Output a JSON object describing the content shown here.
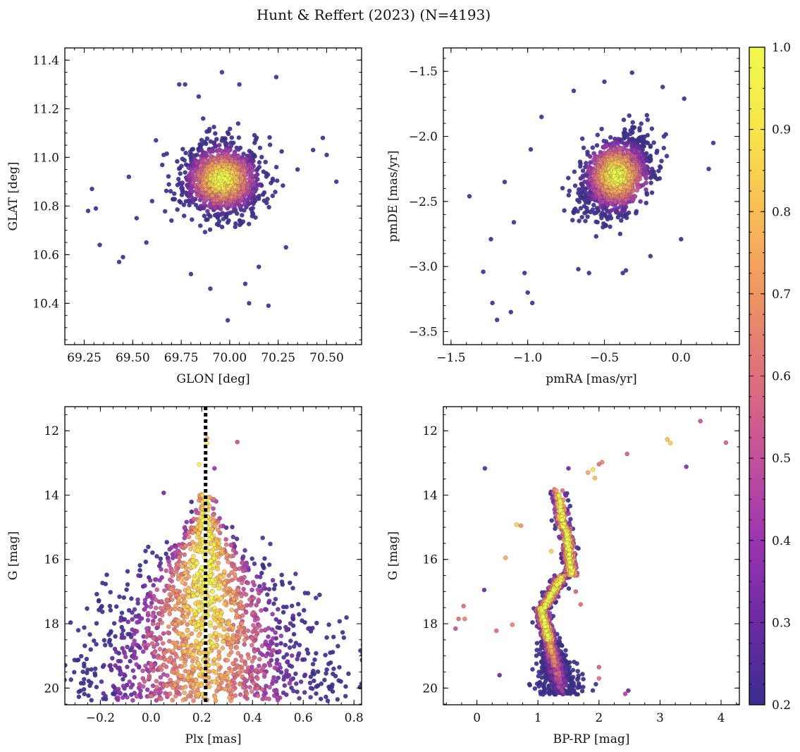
{
  "figure": {
    "title": "Hunt & Reffert (2023) (N=4193)"
  },
  "colorbar": {
    "label": "",
    "range": [
      0.2,
      1.0
    ],
    "ticks": [
      0.2,
      0.3,
      0.4,
      0.5,
      0.6,
      0.7,
      0.8,
      0.9,
      1.0
    ],
    "tick_labels": [
      "0.2",
      "0.3",
      "0.4",
      "0.5",
      "0.6",
      "0.7",
      "0.8",
      "0.9",
      "1.0"
    ],
    "colormap": "plasma",
    "colormap_stops": [
      "#3b2e8f",
      "#6a2ba1",
      "#9b35b0",
      "#c2519a",
      "#dd707c",
      "#ee9563",
      "#f8bd55",
      "#f7e64b",
      "#f0f94e"
    ]
  },
  "chart_data": [
    {
      "type": "scatter",
      "panel": "top-left",
      "title": "",
      "xlabel": "GLON [deg]",
      "ylabel": "GLAT [deg]",
      "xlim": [
        69.15,
        70.68
      ],
      "ylim": [
        10.23,
        11.45
      ],
      "xticks": [
        69.25,
        69.5,
        69.75,
        70.0,
        70.25,
        70.5
      ],
      "xtick_labels": [
        "69.25",
        "69.50",
        "69.75",
        "70.00",
        "70.25",
        "70.50"
      ],
      "yticks": [
        10.4,
        10.6,
        10.8,
        11.0,
        11.2,
        11.4
      ],
      "ytick_labels": [
        "10.4",
        "10.6",
        "10.8",
        "11.0",
        "11.2",
        "11.4"
      ],
      "xminor": 0.05,
      "yminor": 0.05,
      "cluster_center": [
        69.96,
        10.91
      ],
      "cluster_spread": [
        0.18,
        0.13
      ],
      "points": [
        [
          69.27,
          10.78,
          0.22
        ],
        [
          69.29,
          10.87,
          0.22
        ],
        [
          69.31,
          10.79,
          0.22
        ],
        [
          69.33,
          10.64,
          0.22
        ],
        [
          69.43,
          10.57,
          0.22
        ],
        [
          69.45,
          10.59,
          0.22
        ],
        [
          69.48,
          10.92,
          0.22
        ],
        [
          69.52,
          10.75,
          0.22
        ],
        [
          69.57,
          10.65,
          0.22
        ],
        [
          69.6,
          10.82,
          0.22
        ],
        [
          69.62,
          11.07,
          0.22
        ],
        [
          69.66,
          11.01,
          0.22
        ],
        [
          69.7,
          10.74,
          0.22
        ],
        [
          69.74,
          11.3,
          0.22
        ],
        [
          69.77,
          11.3,
          0.22
        ],
        [
          69.84,
          11.25,
          0.22
        ],
        [
          69.96,
          11.35,
          0.22
        ],
        [
          70.05,
          11.3,
          0.22
        ],
        [
          70.08,
          10.48,
          0.22
        ],
        [
          70.1,
          10.4,
          0.22
        ],
        [
          70.2,
          10.39,
          0.22
        ],
        [
          70.24,
          11.33,
          0.22
        ],
        [
          70.29,
          10.63,
          0.22
        ],
        [
          70.35,
          10.95,
          0.22
        ],
        [
          70.43,
          11.03,
          0.22
        ],
        [
          70.48,
          11.08,
          0.22
        ],
        [
          70.5,
          11.01,
          0.22
        ],
        [
          70.55,
          10.9,
          0.22
        ],
        [
          69.99,
          10.33,
          0.22
        ],
        [
          69.8,
          10.52,
          0.22
        ],
        [
          69.9,
          10.46,
          0.22
        ],
        [
          70.15,
          10.55,
          0.22
        ]
      ]
    },
    {
      "type": "scatter",
      "panel": "top-right",
      "title": "",
      "xlabel": "pmRA [mas/yr]",
      "ylabel": "pmDE [mas/yr]",
      "xlim": [
        -1.55,
        0.38
      ],
      "ylim": [
        -3.6,
        -1.32
      ],
      "xticks": [
        -1.5,
        -1.0,
        -0.5,
        0.0
      ],
      "xtick_labels": [
        "−1.5",
        "−1.0",
        "−0.5",
        "0.0"
      ],
      "yticks": [
        -3.5,
        -3.0,
        -2.5,
        -2.0,
        -1.5
      ],
      "ytick_labels": [
        "−3.5",
        "−3.0",
        "−2.5",
        "−2.0",
        "−1.5"
      ],
      "xminor": 0.1,
      "yminor": 0.1,
      "cluster_center": [
        -0.42,
        -2.3
      ],
      "cluster_spread": [
        0.2,
        0.26
      ],
      "points": [
        [
          -1.38,
          -2.46,
          0.22
        ],
        [
          -1.29,
          -3.04,
          0.22
        ],
        [
          -1.24,
          -2.79,
          0.22
        ],
        [
          -1.23,
          -3.28,
          0.22
        ],
        [
          -1.2,
          -3.41,
          0.22
        ],
        [
          -1.15,
          -2.35,
          0.22
        ],
        [
          -1.11,
          -3.35,
          0.22
        ],
        [
          -1.09,
          -2.66,
          0.22
        ],
        [
          -1.02,
          -3.05,
          0.22
        ],
        [
          -1.0,
          -3.2,
          0.22
        ],
        [
          -0.97,
          -3.28,
          0.22
        ],
        [
          -0.98,
          -2.1,
          0.22
        ],
        [
          -0.91,
          -1.85,
          0.22
        ],
        [
          -0.7,
          -1.65,
          0.22
        ],
        [
          -0.5,
          -1.58,
          0.22
        ],
        [
          -0.32,
          -1.51,
          0.22
        ],
        [
          -0.12,
          -1.62,
          0.22
        ],
        [
          0.02,
          -1.71,
          0.22
        ],
        [
          0.21,
          -2.05,
          0.22
        ],
        [
          0.18,
          -2.25,
          0.22
        ],
        [
          0.0,
          -2.79,
          0.22
        ],
        [
          -0.2,
          -2.92,
          0.22
        ],
        [
          -0.38,
          -3.05,
          0.22
        ],
        [
          -0.6,
          -3.05,
          0.22
        ],
        [
          -0.67,
          -3.02,
          0.22
        ],
        [
          -0.36,
          -3.03,
          0.22
        ]
      ]
    },
    {
      "type": "scatter",
      "panel": "bottom-left",
      "title": "",
      "xlabel": "Plx [mas]",
      "ylabel": "G [mag]",
      "xlim": [
        -0.34,
        0.83
      ],
      "ylim": [
        20.52,
        11.25
      ],
      "y_inverted": true,
      "xticks": [
        -0.2,
        0.0,
        0.2,
        0.4,
        0.6,
        0.8
      ],
      "xtick_labels": [
        "−0.2",
        "0.0",
        "0.2",
        "0.4",
        "0.6",
        "0.8"
      ],
      "yticks": [
        12,
        14,
        16,
        18,
        20
      ],
      "ytick_labels": [
        "12",
        "14",
        "16",
        "18",
        "20"
      ],
      "xminor": 0.05,
      "yminor": 0.5,
      "reference_line": {
        "x": 0.215,
        "style": "dotted",
        "color": "#000000"
      },
      "points": [
        [
          0.22,
          12.23,
          0.75
        ],
        [
          0.34,
          12.35,
          0.5
        ],
        [
          0.19,
          13.05,
          0.95
        ],
        [
          0.25,
          13.17,
          0.4
        ],
        [
          0.22,
          12.38,
          0.95
        ],
        [
          0.05,
          13.93,
          0.3
        ],
        [
          0.44,
          15.33,
          0.25
        ],
        [
          0.47,
          15.52,
          0.25
        ],
        [
          0.37,
          15.72,
          0.3
        ],
        [
          0.57,
          16.45,
          0.25
        ],
        [
          0.65,
          17.2,
          0.25
        ],
        [
          0.7,
          19.25,
          0.22
        ],
        [
          0.72,
          19.4,
          0.22
        ],
        [
          -0.22,
          19.4,
          0.22
        ],
        [
          -0.25,
          19.43,
          0.22
        ],
        [
          0.0,
          20.25,
          0.6
        ],
        [
          -0.18,
          20.25,
          0.25
        ],
        [
          0.41,
          20.22,
          0.4
        ],
        [
          0.62,
          18.15,
          0.3
        ],
        [
          0.56,
          17.75,
          0.3
        ],
        [
          -0.05,
          16.5,
          0.3
        ],
        [
          0.48,
          16.65,
          0.3
        ],
        [
          -0.12,
          17.9,
          0.3
        ],
        [
          0.5,
          17.55,
          0.3
        ]
      ]
    },
    {
      "type": "scatter",
      "panel": "bottom-right",
      "title": "",
      "xlabel": "BP-RP [mag]",
      "ylabel": "G [mag]",
      "xlim": [
        -0.55,
        4.3
      ],
      "ylim": [
        20.52,
        11.25
      ],
      "y_inverted": true,
      "xticks": [
        0,
        1,
        2,
        3,
        4
      ],
      "xtick_labels": [
        "0",
        "1",
        "2",
        "3",
        "4"
      ],
      "yticks": [
        12,
        14,
        16,
        18,
        20
      ],
      "ytick_labels": [
        "12",
        "14",
        "16",
        "18",
        "20"
      ],
      "xminor": 0.25,
      "yminor": 0.5,
      "points": [
        [
          3.66,
          11.7,
          0.5
        ],
        [
          4.08,
          12.37,
          0.55
        ],
        [
          3.12,
          12.27,
          0.8
        ],
        [
          3.17,
          12.38,
          0.85
        ],
        [
          2.46,
          12.72,
          0.55
        ],
        [
          3.43,
          13.12,
          0.35
        ],
        [
          0.13,
          13.17,
          0.25
        ],
        [
          1.5,
          13.17,
          0.3
        ],
        [
          1.9,
          13.21,
          0.9
        ],
        [
          1.82,
          13.3,
          0.75
        ],
        [
          1.93,
          13.47,
          0.8
        ],
        [
          2.0,
          13.04,
          0.6
        ],
        [
          2.05,
          12.98,
          0.65
        ],
        [
          0.65,
          14.92,
          0.85
        ],
        [
          0.72,
          14.95,
          0.7
        ],
        [
          0.47,
          15.95,
          0.75
        ],
        [
          0.12,
          16.95,
          0.3
        ],
        [
          -0.22,
          17.45,
          0.6
        ],
        [
          -0.2,
          17.85,
          0.65
        ],
        [
          -0.3,
          17.85,
          0.6
        ],
        [
          -0.35,
          18.15,
          0.5
        ],
        [
          0.32,
          18.22,
          0.6
        ],
        [
          0.58,
          18.03,
          0.65
        ],
        [
          0.37,
          19.6,
          0.3
        ],
        [
          2.48,
          20.08,
          0.3
        ],
        [
          2.43,
          20.18,
          0.45
        ],
        [
          2.0,
          19.35,
          0.55
        ],
        [
          2.0,
          19.7,
          0.6
        ],
        [
          1.55,
          16.4,
          0.4
        ],
        [
          1.62,
          17.0,
          0.55
        ],
        [
          1.7,
          17.4,
          0.6
        ],
        [
          1.22,
          15.75,
          0.85
        ]
      ]
    }
  ]
}
